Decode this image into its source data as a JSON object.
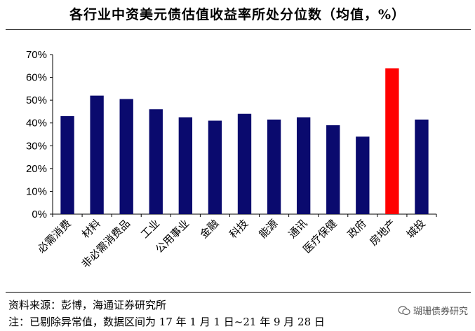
{
  "title": "各行业中资美元债估值收益率所处分位数（均值，%）",
  "chart_data": {
    "type": "bar",
    "categories": [
      "必需消费",
      "材料",
      "非必需消费品",
      "工业",
      "公用事业",
      "金融",
      "科技",
      "能源",
      "通讯",
      "医疗保健",
      "政府",
      "房地产",
      "城投"
    ],
    "values": [
      43,
      52,
      50.5,
      46,
      42.5,
      41,
      44,
      41.5,
      42.5,
      39,
      34,
      64,
      41.5
    ],
    "highlight_index": 11,
    "ylim": [
      0,
      70
    ],
    "yticks": [
      "0%",
      "10%",
      "20%",
      "30%",
      "40%",
      "50%",
      "60%",
      "70%"
    ],
    "bar_color": "#0A0A6E",
    "highlight_color": "#FF0000",
    "grid": false
  },
  "footnotes": {
    "source": "资料来源：彭博，海通证券研究所",
    "note": "注：已剔除异常值，数据区间为 17 年 1 月 1 日~21 年 9 月 28 日"
  },
  "watermark": {
    "icon": "wechat-icon",
    "text": "瑚珊债券研究"
  }
}
